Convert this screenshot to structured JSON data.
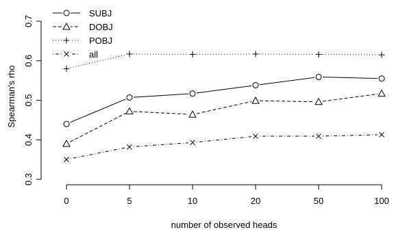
{
  "chart_data": {
    "type": "line",
    "title": "",
    "xlabel": "number of observed heads",
    "ylabel": "Spearman's rho",
    "categories": [
      "0",
      "5",
      "10",
      "20",
      "50",
      "100"
    ],
    "ylim": [
      0.3,
      0.7
    ],
    "yticks": [
      "0.3",
      "0.4",
      "0.5",
      "0.6",
      "0.7"
    ],
    "grid": false,
    "legend_position": "top-left",
    "series": [
      {
        "name": "SUBJ",
        "values": [
          0.44,
          0.507,
          0.517,
          0.538,
          0.559,
          0.555
        ],
        "marker": "circle",
        "line": "solid",
        "color": "#000000"
      },
      {
        "name": "DOBJ",
        "values": [
          0.39,
          0.472,
          0.464,
          0.499,
          0.496,
          0.517
        ],
        "marker": "triangle",
        "line": "dashed",
        "color": "#000000"
      },
      {
        "name": "POBJ",
        "values": [
          0.58,
          0.617,
          0.616,
          0.617,
          0.616,
          0.615
        ],
        "marker": "plus",
        "line": "dotted",
        "color": "#000000"
      },
      {
        "name": "all",
        "values": [
          0.35,
          0.382,
          0.393,
          0.409,
          0.409,
          0.413
        ],
        "marker": "cross",
        "line": "dotdash",
        "color": "#000000"
      }
    ]
  }
}
